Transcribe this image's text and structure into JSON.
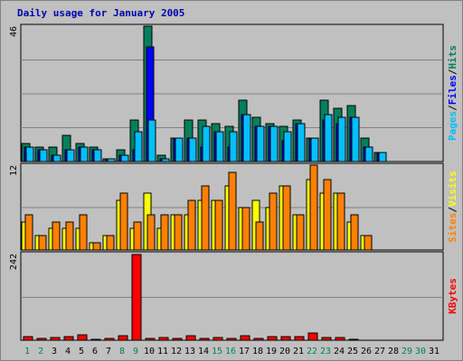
{
  "title": "Daily usage for January 2005",
  "colors": {
    "hits": "#00805c",
    "files": "#0000ff",
    "pages": "#00c0ff",
    "visits": "#ffff00",
    "sites": "#ff8000",
    "kbytes": "#ff0000",
    "weekday_label": "#000000",
    "weekend_label": "#00805c",
    "plot_bg": "#c0c0c0",
    "grid": "#808080"
  },
  "chart_data": {
    "type": "bar",
    "title": "Daily usage for January 2005",
    "days": [
      "1",
      "2",
      "3",
      "4",
      "5",
      "6",
      "7",
      "8",
      "9",
      "10",
      "11",
      "12",
      "13",
      "14",
      "15",
      "16",
      "17",
      "18",
      "19",
      "20",
      "21",
      "22",
      "23",
      "24",
      "25",
      "26",
      "27",
      "28",
      "29",
      "30",
      "31"
    ],
    "weekend_days": [
      "1",
      "2",
      "8",
      "9",
      "15",
      "16",
      "22",
      "23",
      "29",
      "30"
    ],
    "panels": [
      {
        "id": "hits_files_pages",
        "ymax": "46",
        "ymax_value": 46,
        "side_label": [
          "Pages",
          "Files",
          "Hits"
        ],
        "series": [
          {
            "name": "Hits",
            "values": [
              6,
              5,
              5,
              9,
              6,
              5,
              1,
              4,
              14,
              46,
              2,
              8,
              14,
              14,
              13,
              12,
              21,
              15,
              13,
              12,
              14,
              8,
              21,
              18,
              19,
              8,
              3,
              0,
              0,
              0,
              0
            ]
          },
          {
            "name": "Files",
            "values": [
              5,
              4,
              2,
              4,
              5,
              4,
              1,
              2,
              4,
              39,
              1,
              8,
              8,
              5,
              10,
              5,
              16,
              12,
              12,
              7,
              13,
              8,
              14,
              13,
              15,
              5,
              3,
              0,
              0,
              0,
              0
            ]
          },
          {
            "name": "Pages",
            "values": [
              5,
              4,
              2,
              4,
              5,
              4,
              1,
              2,
              10,
              14,
              1,
              8,
              8,
              12,
              10,
              10,
              16,
              12,
              12,
              10,
              13,
              8,
              16,
              15,
              15,
              5,
              3,
              0,
              0,
              0,
              0
            ]
          }
        ]
      },
      {
        "id": "visits_sites",
        "ymax": "12",
        "ymax_value": 12,
        "side_label": [
          "Sites",
          "Visits"
        ],
        "series": [
          {
            "name": "Visits",
            "values": [
              4,
              2,
              3,
              3,
              3,
              1,
              2,
              7,
              3,
              8,
              3,
              5,
              5,
              7,
              7,
              9,
              6,
              7,
              6,
              9,
              5,
              10,
              8,
              8,
              4,
              2,
              0,
              0,
              0,
              0,
              0
            ]
          },
          {
            "name": "Sites",
            "values": [
              5,
              2,
              4,
              4,
              5,
              1,
              2,
              8,
              4,
              5,
              5,
              5,
              7,
              9,
              7,
              11,
              6,
              4,
              8,
              9,
              5,
              12,
              10,
              8,
              5,
              2,
              0,
              0,
              0,
              0,
              0
            ]
          }
        ]
      },
      {
        "id": "kbytes",
        "ymax": "242",
        "ymax_value": 242,
        "side_label": [
          "KBytes"
        ],
        "series": [
          {
            "name": "KBytes",
            "values": [
              10,
              6,
              8,
              10,
              15,
              2,
              4,
              14,
              242,
              6,
              8,
              4,
              14,
              6,
              8,
              4,
              14,
              4,
              10,
              10,
              10,
              20,
              8,
              8,
              2,
              0,
              0,
              0,
              0,
              0,
              0
            ]
          }
        ]
      }
    ]
  }
}
